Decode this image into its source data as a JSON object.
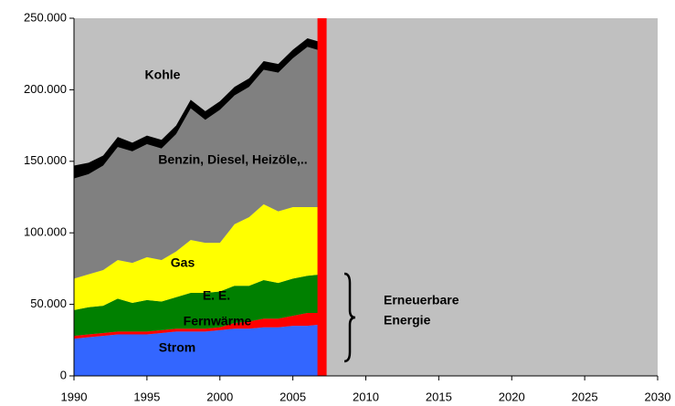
{
  "chart_data": {
    "type": "stacked_area",
    "x": [
      1990,
      1991,
      1992,
      1993,
      1994,
      1995,
      1996,
      1997,
      1998,
      1999,
      2000,
      2001,
      2002,
      2003,
      2004,
      2005,
      2006,
      2007
    ],
    "series": [
      {
        "name": "Strom",
        "color": "#3366ff",
        "values": [
          26000,
          27000,
          28000,
          29000,
          29000,
          29000,
          30000,
          31000,
          31000,
          31000,
          32000,
          33000,
          33000,
          34000,
          34000,
          35000,
          35000,
          36000
        ]
      },
      {
        "name": "Fernwärme",
        "color": "#ff0000",
        "values": [
          2000,
          2000,
          2000,
          2000,
          2000,
          2000,
          2000,
          2000,
          2000,
          2000,
          2000,
          4000,
          5000,
          6000,
          6000,
          7000,
          9000,
          8000
        ]
      },
      {
        "name": "E. E.",
        "color": "#008000",
        "values": [
          18000,
          19000,
          19000,
          23000,
          20000,
          22000,
          20000,
          22000,
          25000,
          25000,
          25000,
          26000,
          25000,
          27000,
          25000,
          26000,
          26000,
          27000
        ]
      },
      {
        "name": "Gas",
        "color": "#ffff00",
        "values": [
          22000,
          23000,
          25000,
          27000,
          28000,
          30000,
          29000,
          32000,
          37000,
          35000,
          34000,
          43000,
          48000,
          53000,
          50000,
          50000,
          48000,
          47000
        ]
      },
      {
        "name": "Benzin, Diesel, Heizöle,..",
        "color": "#808080",
        "values": [
          70000,
          70000,
          73000,
          79000,
          78000,
          79000,
          78000,
          82000,
          92000,
          86000,
          93000,
          90000,
          91000,
          94000,
          97000,
          104000,
          112000,
          109000
        ]
      },
      {
        "name": "Kohle",
        "color": "#000000",
        "values": [
          9000,
          8000,
          7000,
          7000,
          6000,
          6000,
          6000,
          6000,
          6000,
          6000,
          6000,
          6000,
          6000,
          6000,
          6000,
          6000,
          6000,
          6000
        ]
      }
    ],
    "xlim": [
      1990,
      2030
    ],
    "xticks": [
      1990,
      1995,
      2000,
      2005,
      2010,
      2015,
      2020,
      2025,
      2030
    ],
    "ylim": [
      0,
      250000
    ],
    "yticks": [
      0,
      {
        "value": 50000,
        "label": "50.000"
      },
      {
        "value": 100000,
        "label": "100.000"
      },
      {
        "value": 150000,
        "label": "150.000"
      },
      {
        "value": 200000,
        "label": "200.000"
      },
      {
        "value": 250000,
        "label": "250.000"
      }
    ],
    "background": "#c0c0c0",
    "divider": {
      "x": 2007,
      "color": "#ff0000"
    },
    "annotation": [
      "Erneuerbare",
      "Energie"
    ]
  }
}
